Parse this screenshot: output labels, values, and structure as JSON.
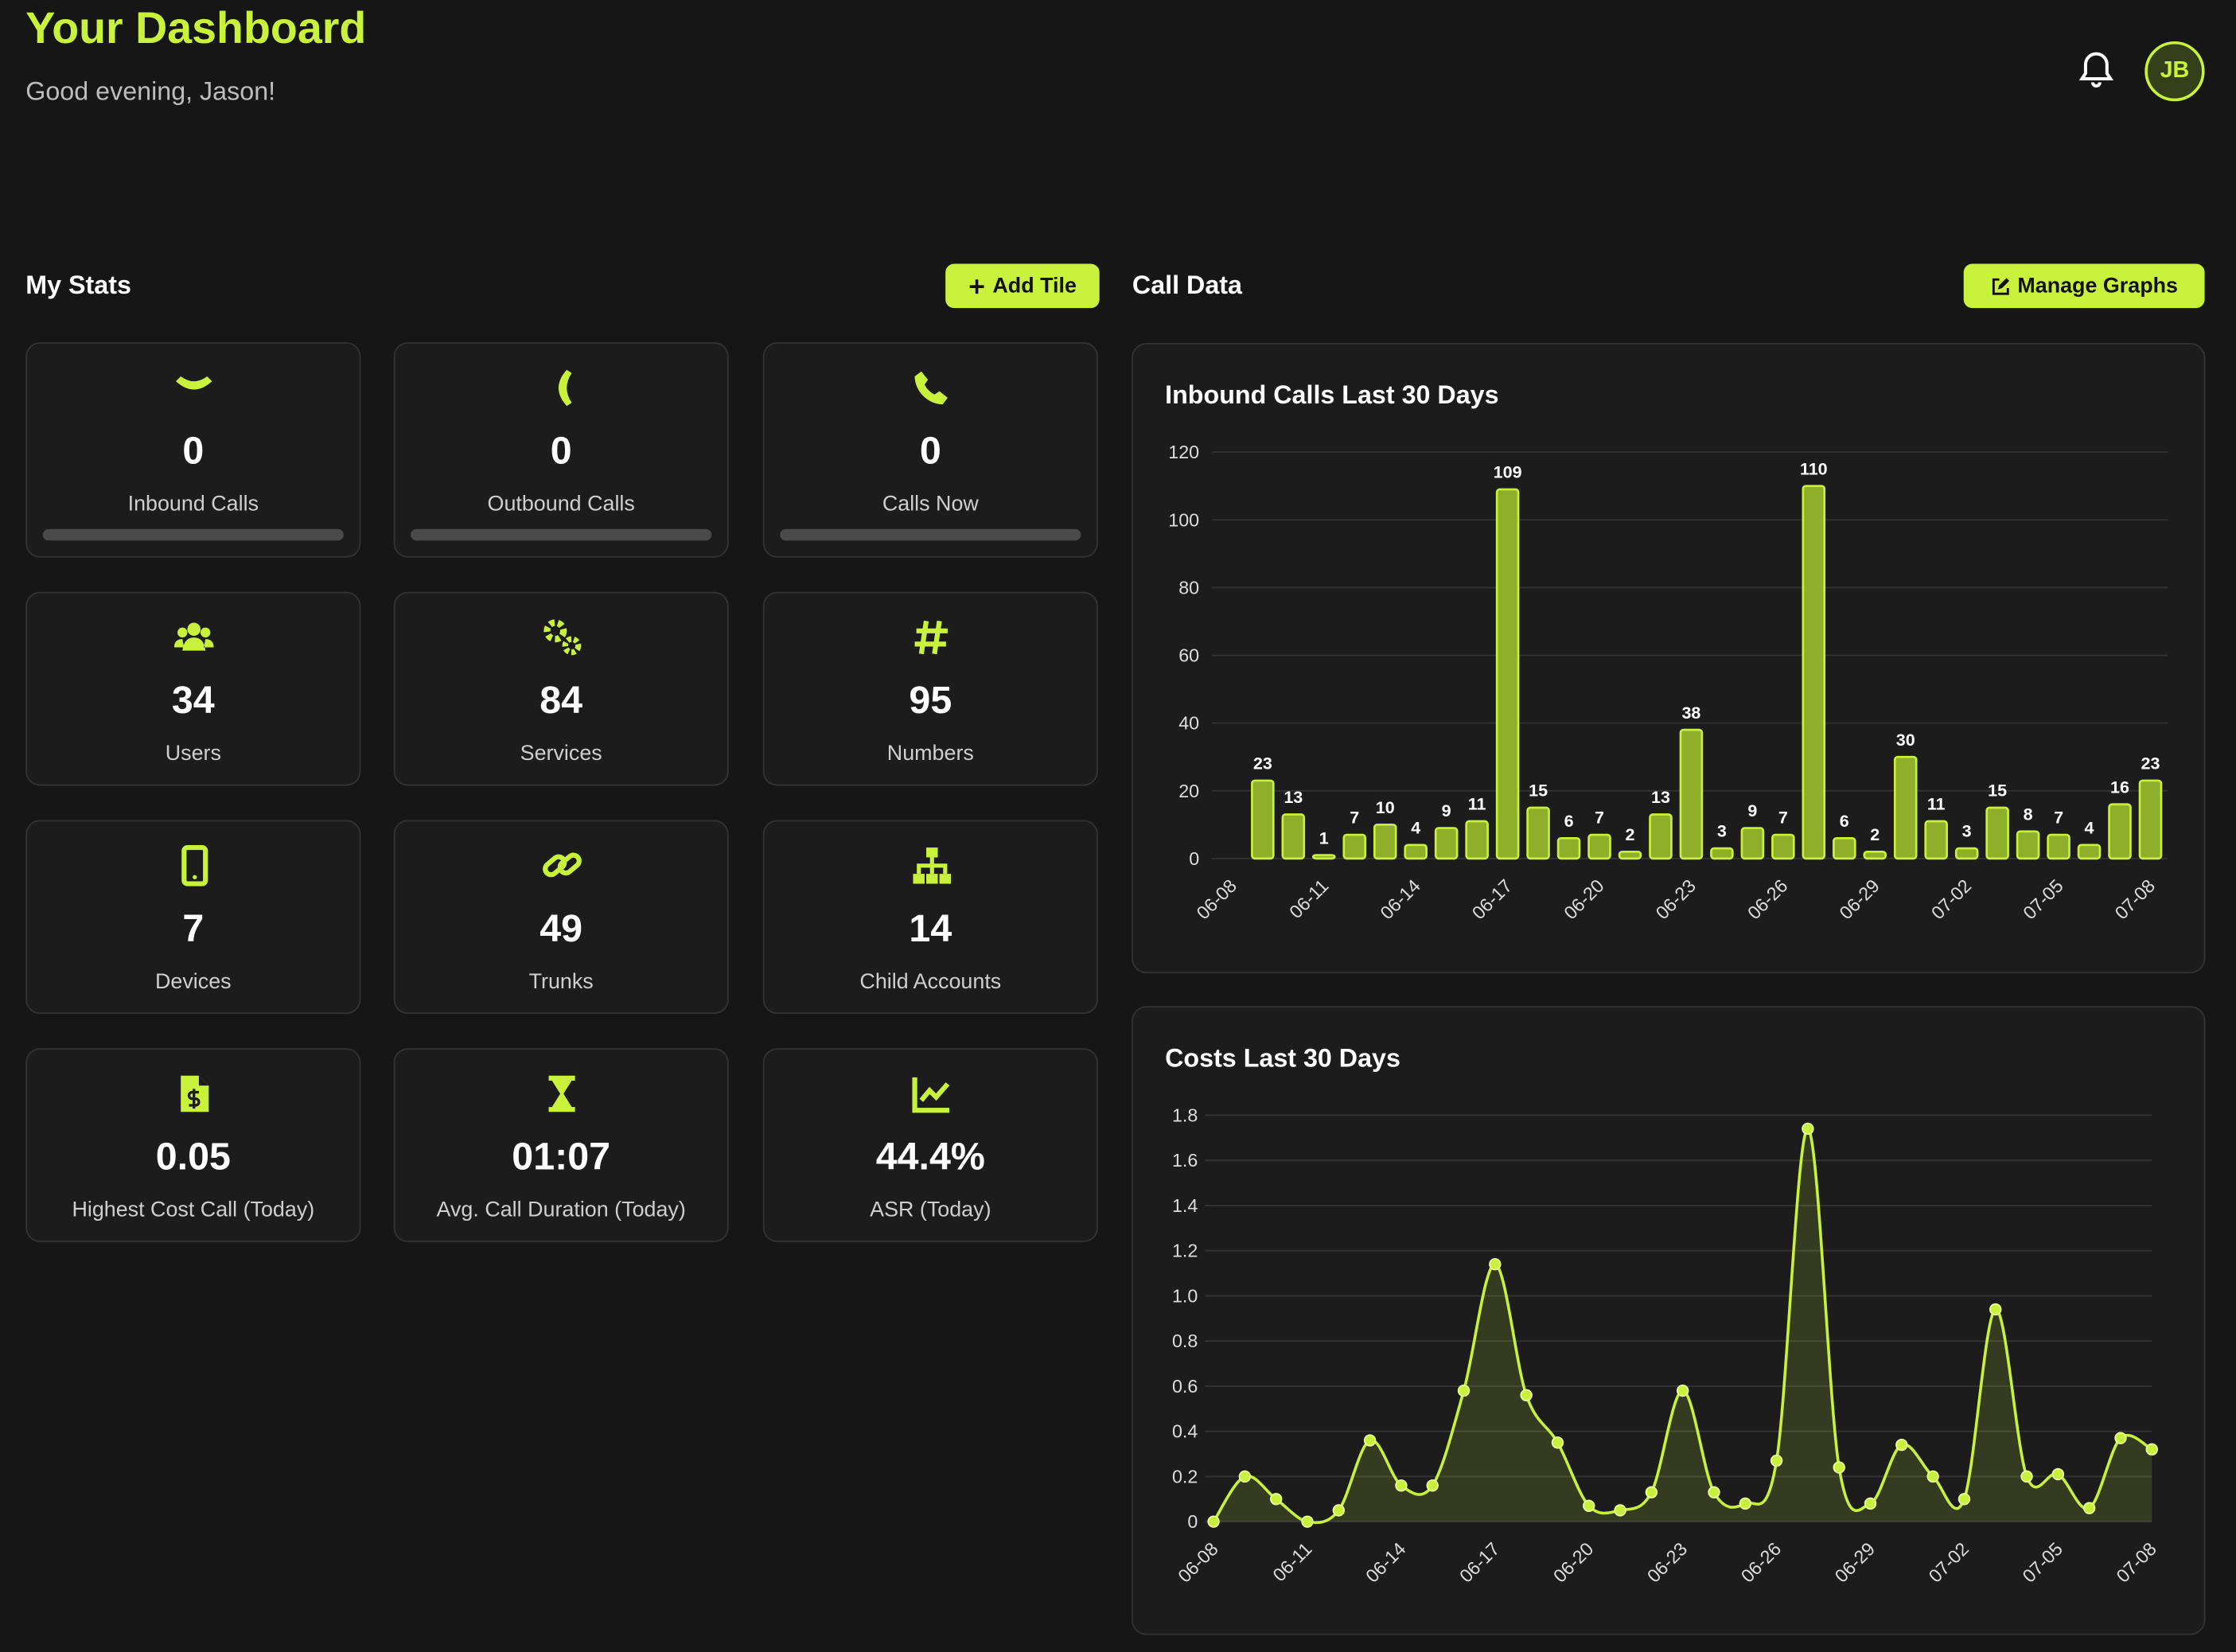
{
  "header": {
    "title": "Your Dashboard",
    "subtitle": "Good evening, Jason!",
    "avatar": "JB"
  },
  "stats": {
    "heading": "My Stats",
    "button": "Add Tile",
    "tiles": [
      {
        "value": "0",
        "label": "Inbound Calls"
      },
      {
        "value": "0",
        "label": "Outbound Calls"
      },
      {
        "value": "0",
        "label": "Calls Now"
      },
      {
        "value": "34",
        "label": "Users"
      },
      {
        "value": "84",
        "label": "Services"
      },
      {
        "value": "95",
        "label": "Numbers"
      },
      {
        "value": "7",
        "label": "Devices"
      },
      {
        "value": "49",
        "label": "Trunks"
      },
      {
        "value": "14",
        "label": "Child Accounts"
      },
      {
        "value": "0.05",
        "label": "Highest Cost Call (Today)"
      },
      {
        "value": "01:07",
        "label": "Avg. Call Duration (Today)"
      },
      {
        "value": "44.4%",
        "label": "ASR (Today)"
      }
    ]
  },
  "call_data": {
    "heading": "Call Data",
    "button": "Manage Graphs"
  },
  "chart_data": [
    {
      "type": "bar",
      "title": "Inbound Calls Last 30 Days",
      "color": "#c8f03c",
      "categories": [
        "06-08",
        null,
        null,
        "06-11",
        null,
        null,
        "06-14",
        null,
        null,
        "06-17",
        null,
        null,
        "06-20",
        null,
        null,
        "06-23",
        null,
        null,
        "06-26",
        null,
        null,
        "06-29",
        null,
        null,
        "07-02",
        null,
        null,
        "07-05",
        null,
        null,
        "07-08"
      ],
      "values": [
        0,
        23,
        13,
        1,
        7,
        10,
        4,
        9,
        11,
        109,
        15,
        6,
        7,
        2,
        13,
        38,
        3,
        9,
        7,
        110,
        6,
        2,
        30,
        11,
        3,
        15,
        8,
        7,
        4,
        16,
        23
      ],
      "ylim": [
        0,
        120
      ],
      "yticks": [
        0,
        20,
        40,
        60,
        80,
        100,
        120
      ],
      "grid": true
    },
    {
      "type": "line",
      "title": "Costs Last 30 Days",
      "color": "#c8f03c",
      "categories": [
        "06-08",
        null,
        null,
        "06-11",
        null,
        null,
        "06-14",
        null,
        null,
        "06-17",
        null,
        null,
        "06-20",
        null,
        null,
        "06-23",
        null,
        null,
        "06-26",
        null,
        null,
        "06-29",
        null,
        null,
        "07-02",
        null,
        null,
        "07-05",
        null,
        null,
        "07-08"
      ],
      "values": [
        0,
        0.2,
        0.1,
        0,
        0.05,
        0.36,
        0.16,
        0.16,
        0.58,
        1.14,
        0.56,
        0.35,
        0.07,
        0.05,
        0.13,
        0.58,
        0.13,
        0.08,
        0.27,
        1.74,
        0.24,
        0.08,
        0.34,
        0.2,
        0.1,
        0.94,
        0.2,
        0.21,
        0.06,
        0.37,
        0.32
      ],
      "ylim": [
        0,
        1.8
      ],
      "yticks": [
        0,
        0.2,
        0.4,
        0.6,
        0.8,
        {
          "value": 1,
          "label": "1.0"
        },
        1.2,
        1.4,
        1.6,
        1.8
      ],
      "grid": true
    }
  ]
}
